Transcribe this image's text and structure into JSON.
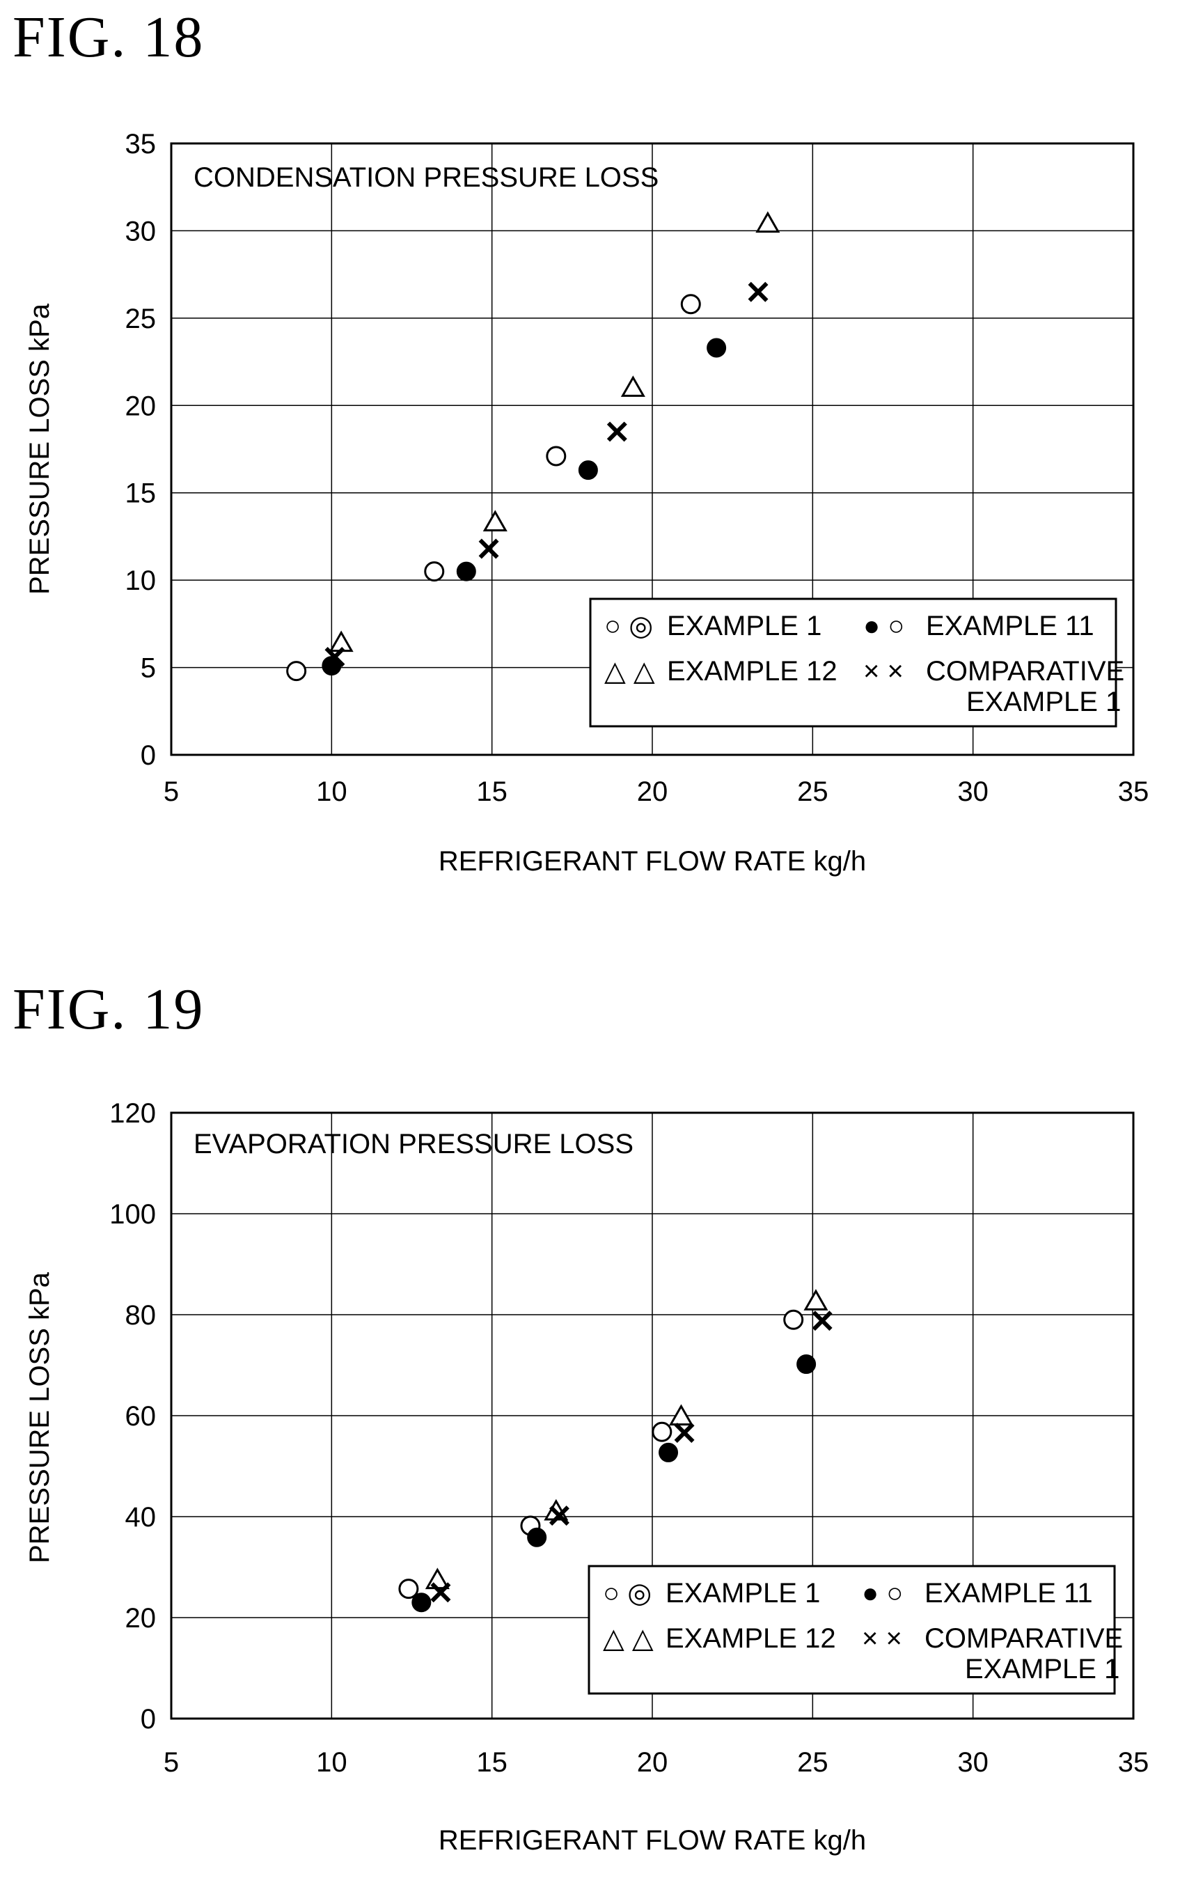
{
  "figures": [
    {
      "title": "FIG. 18"
    },
    {
      "title": "FIG. 19"
    }
  ],
  "chart_data": [
    {
      "type": "scatter",
      "title": "",
      "annotation": "CONDENSATION PRESSURE LOSS",
      "xlabel": "REFRIGERANT FLOW RATE kg/h",
      "ylabel": "PRESSURE LOSS kPa",
      "xlim": [
        5,
        35
      ],
      "ylim": [
        0,
        35
      ],
      "xticks": [
        5,
        10,
        15,
        20,
        25,
        30,
        35
      ],
      "yticks": [
        0,
        5,
        10,
        15,
        20,
        25,
        30,
        35
      ],
      "grid": true,
      "legend_position": "lower-right",
      "legend": [
        {
          "marker": "open-circle",
          "symbols": "○ ◎",
          "label": "EXAMPLE 1"
        },
        {
          "marker": "filled-circle",
          "symbols": "● ○",
          "label": "EXAMPLE 11"
        },
        {
          "marker": "triangle",
          "symbols": "△ △",
          "label": "EXAMPLE 12"
        },
        {
          "marker": "cross",
          "symbols": "× ×",
          "label": "COMPARATIVE",
          "label2": "EXAMPLE 1"
        }
      ],
      "series": [
        {
          "name": "EXAMPLE 1",
          "marker": "open-circle",
          "x": [
            8.9,
            13.2,
            17.0,
            21.2
          ],
          "y": [
            4.8,
            10.5,
            17.1,
            25.8
          ]
        },
        {
          "name": "EXAMPLE 11",
          "marker": "filled-circle",
          "x": [
            10.0,
            14.2,
            18.0,
            22.0
          ],
          "y": [
            5.1,
            10.5,
            16.3,
            23.3
          ]
        },
        {
          "name": "EXAMPLE 12",
          "marker": "triangle",
          "x": [
            10.3,
            15.1,
            19.4,
            23.6
          ],
          "y": [
            6.4,
            13.3,
            21.0,
            30.4
          ]
        },
        {
          "name": "COMPARATIVE EXAMPLE 1",
          "marker": "cross",
          "x": [
            10.1,
            14.9,
            18.9,
            23.3
          ],
          "y": [
            5.6,
            11.8,
            18.5,
            26.5
          ]
        }
      ]
    },
    {
      "type": "scatter",
      "title": "",
      "annotation": "EVAPORATION PRESSURE LOSS",
      "xlabel": "REFRIGERANT FLOW RATE kg/h",
      "ylabel": "PRESSURE LOSS kPa",
      "xlim": [
        5,
        35
      ],
      "ylim": [
        0,
        120
      ],
      "xticks": [
        5,
        10,
        15,
        20,
        25,
        30,
        35
      ],
      "yticks": [
        0,
        20,
        40,
        60,
        80,
        100,
        120
      ],
      "grid": true,
      "legend_position": "lower-right",
      "legend": [
        {
          "marker": "open-circle",
          "symbols": "○ ◎",
          "label": "EXAMPLE 1"
        },
        {
          "marker": "filled-circle",
          "symbols": "● ○",
          "label": "EXAMPLE 11"
        },
        {
          "marker": "triangle",
          "symbols": "△ △",
          "label": "EXAMPLE 12"
        },
        {
          "marker": "cross",
          "symbols": "× ×",
          "label": "COMPARATIVE",
          "label2": "EXAMPLE 1"
        }
      ],
      "series": [
        {
          "name": "EXAMPLE 1",
          "marker": "open-circle",
          "x": [
            12.4,
            16.2,
            20.3,
            24.4
          ],
          "y": [
            25.7,
            38.2,
            56.8,
            79.0
          ]
        },
        {
          "name": "EXAMPLE 11",
          "marker": "filled-circle",
          "x": [
            12.8,
            16.4,
            20.5,
            24.8
          ],
          "y": [
            23.0,
            35.9,
            52.7,
            70.2
          ]
        },
        {
          "name": "EXAMPLE 12",
          "marker": "triangle",
          "x": [
            13.3,
            17.0,
            20.9,
            25.1
          ],
          "y": [
            27.4,
            41.0,
            59.8,
            82.6
          ]
        },
        {
          "name": "COMPARATIVE EXAMPLE 1",
          "marker": "cross",
          "x": [
            13.4,
            17.1,
            21.0,
            25.3
          ],
          "y": [
            25.0,
            40.2,
            56.6,
            78.8
          ]
        }
      ]
    }
  ]
}
